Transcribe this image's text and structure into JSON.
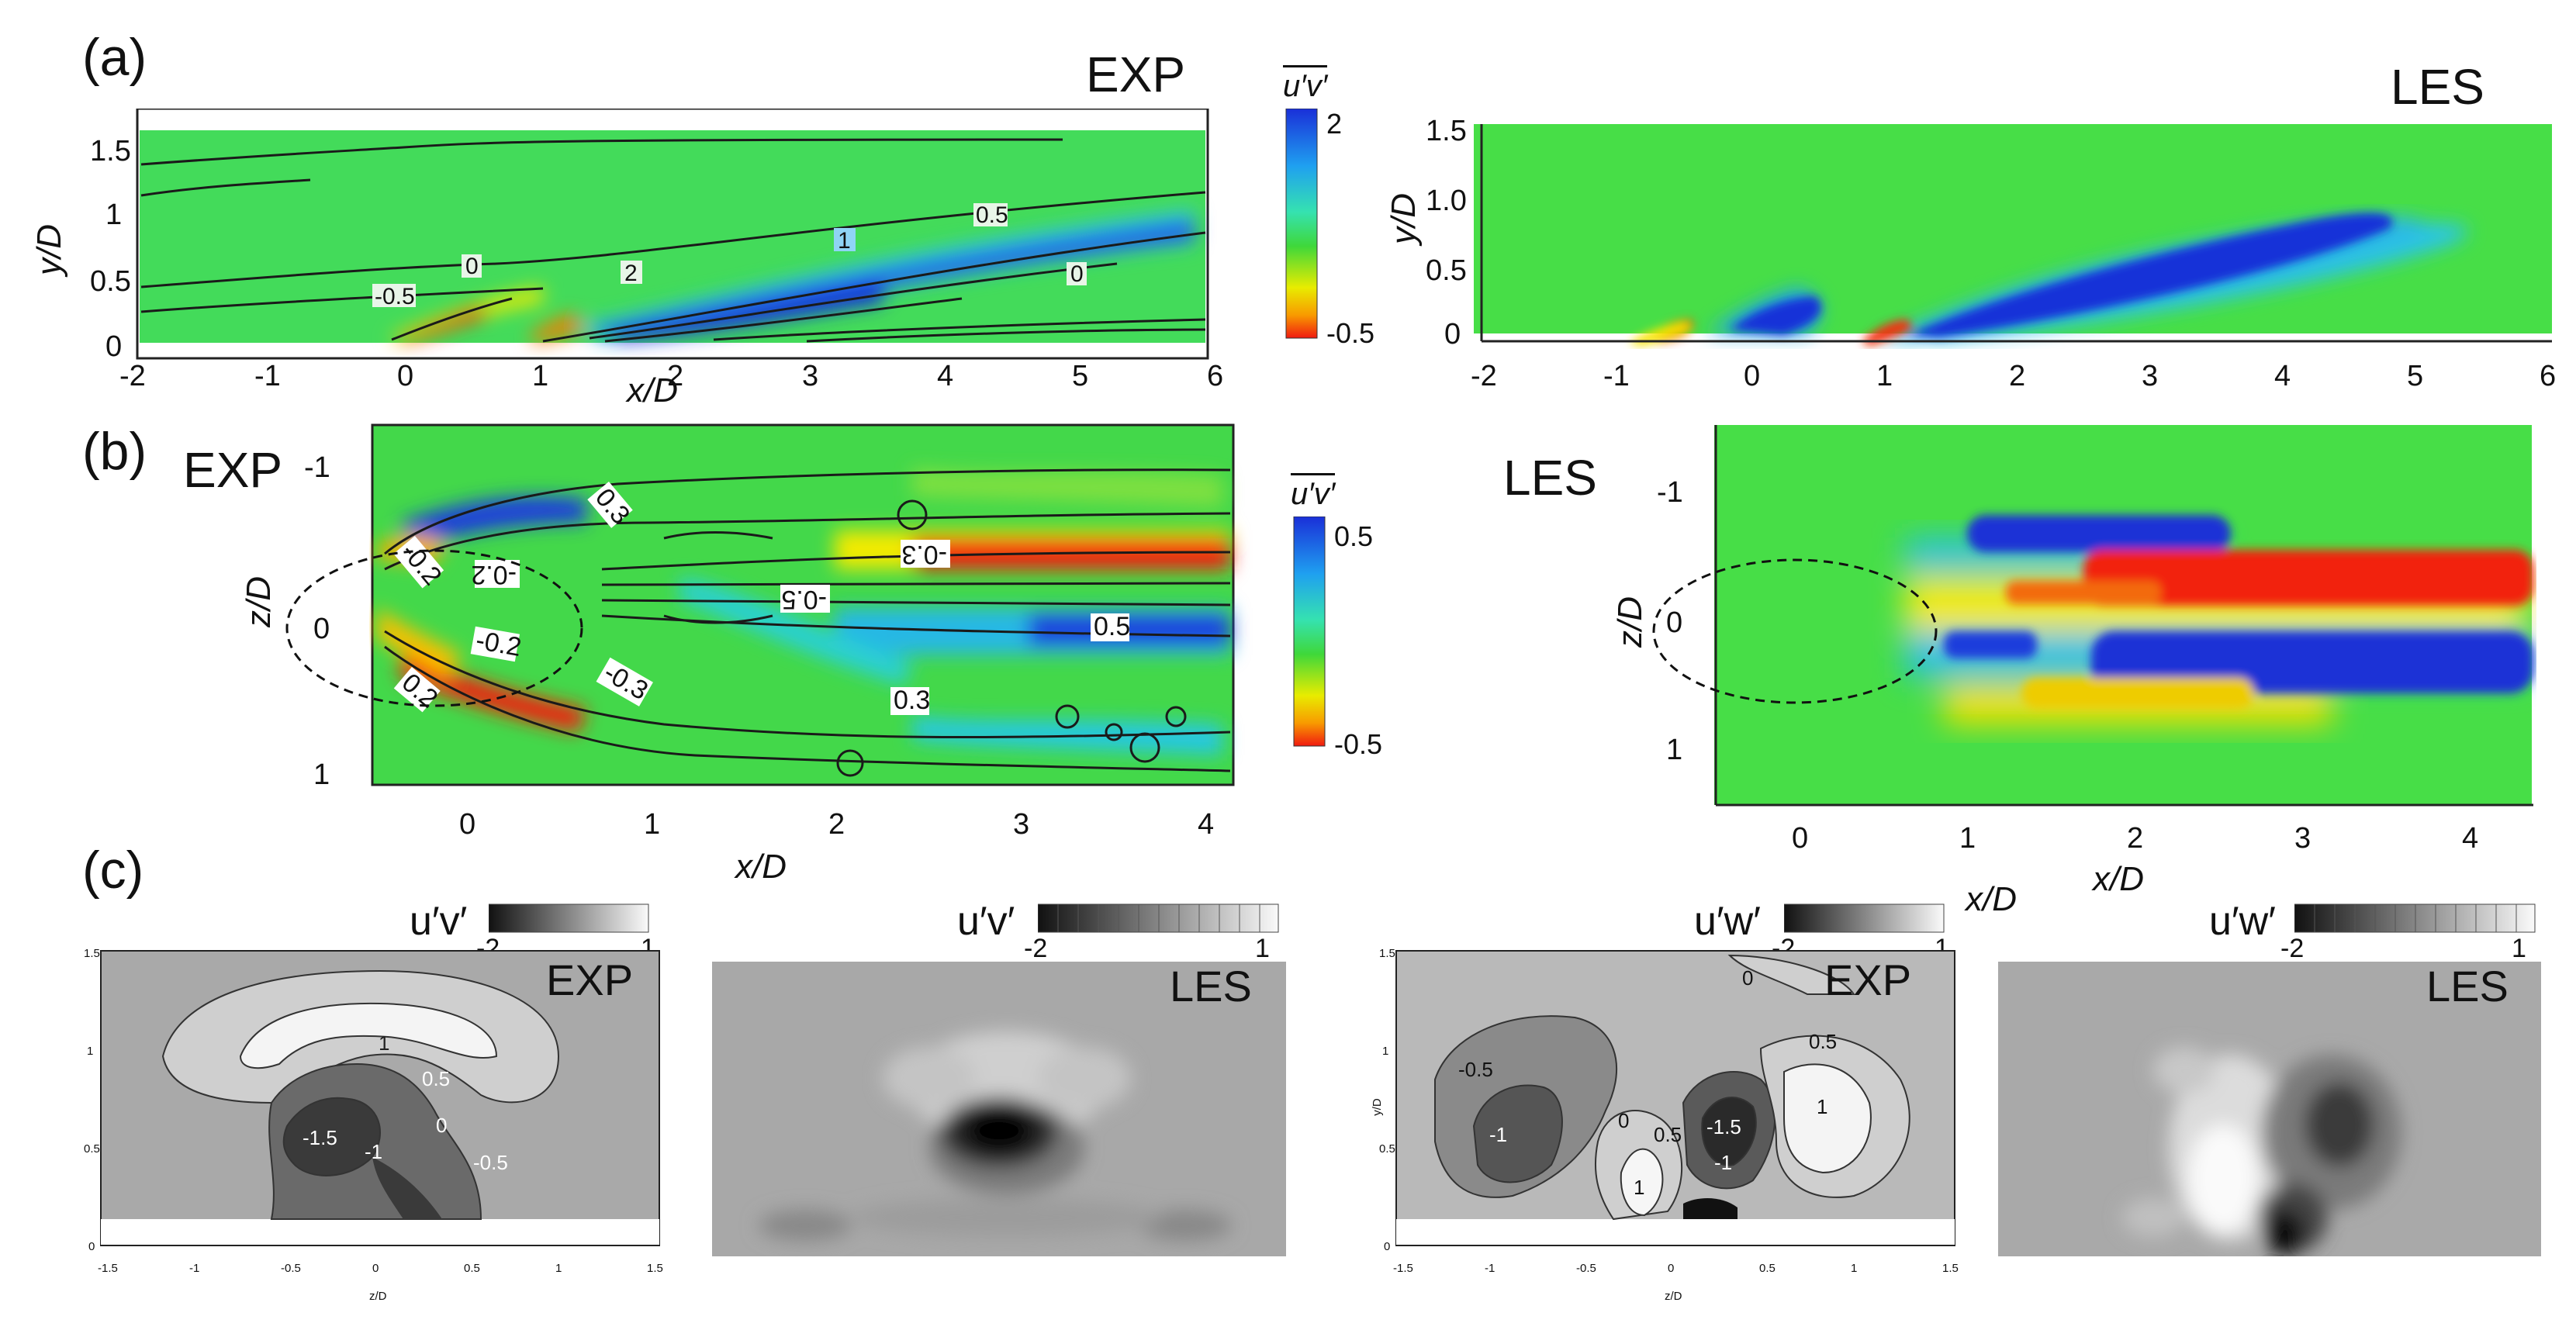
{
  "panel_labels": {
    "a": "(a)",
    "b": "(b)",
    "c": "(c)"
  },
  "titles": {
    "exp": "EXP",
    "les": "LES"
  },
  "axes": {
    "xD": "x/D",
    "yD": "y/D",
    "zD": "z/D",
    "zD_small": "z/D",
    "yD_small": "y/D"
  },
  "colorbars": {
    "a": {
      "label": "u′v′",
      "max": "2",
      "min": "-0.5"
    },
    "b": {
      "label": "u′v′",
      "max": "0.5",
      "min": "-0.5"
    }
  },
  "ticks": {
    "x_a": [
      "-2",
      "-1",
      "0",
      "1",
      "2",
      "3",
      "4",
      "5",
      "6"
    ],
    "y_a_exp": [
      "1.5",
      "1",
      "0.5",
      "0"
    ],
    "y_a_les": [
      "1.5",
      "1.0",
      "0.5",
      "0"
    ],
    "x_b": [
      "0",
      "1",
      "2",
      "3",
      "4"
    ],
    "z_b": [
      "-1",
      "0",
      "1"
    ],
    "c_x": [
      "-1.5",
      "-1",
      "-0.5",
      "0",
      "0.5",
      "1",
      "1.5"
    ],
    "c_y": [
      "1.5",
      "1",
      "0.5",
      "0"
    ]
  },
  "contours": {
    "a_exp": [
      "0.5",
      "1",
      "2",
      "0",
      "-0.5",
      "0"
    ],
    "b_exp": [
      "-0.2",
      "0.3",
      "-0.3",
      "-0.2",
      "-0.5",
      "0.5",
      "-0.2",
      "-0.3",
      "0.2",
      "0.3"
    ],
    "c1": [
      "1",
      "0.5",
      "0",
      "-1.5",
      "-1",
      "-0.5"
    ],
    "c3": [
      "0",
      "0.5",
      "-0.5",
      "-1",
      "0",
      "0.5",
      "-1.5",
      "-1",
      "1",
      "1"
    ]
  },
  "gray_panels": [
    {
      "cb_label": "u′v′",
      "min": "-2",
      "max": "1",
      "title": "EXP"
    },
    {
      "cb_label": "u′v′",
      "min": "-2",
      "max": "1",
      "title": "LES"
    },
    {
      "cb_label": "u′w′",
      "min": "-2",
      "max": "1",
      "title": "EXP"
    },
    {
      "cb_label": "u′w′",
      "min": "-2",
      "max": "1",
      "title": "LES"
    }
  ],
  "colors": {
    "jet_green": "#33d63a",
    "jet_blue": "#1f3ae8",
    "jet_red": "#f2210f",
    "jet_yellow": "#f5e400",
    "gray_bg": "#9a9a9a"
  }
}
